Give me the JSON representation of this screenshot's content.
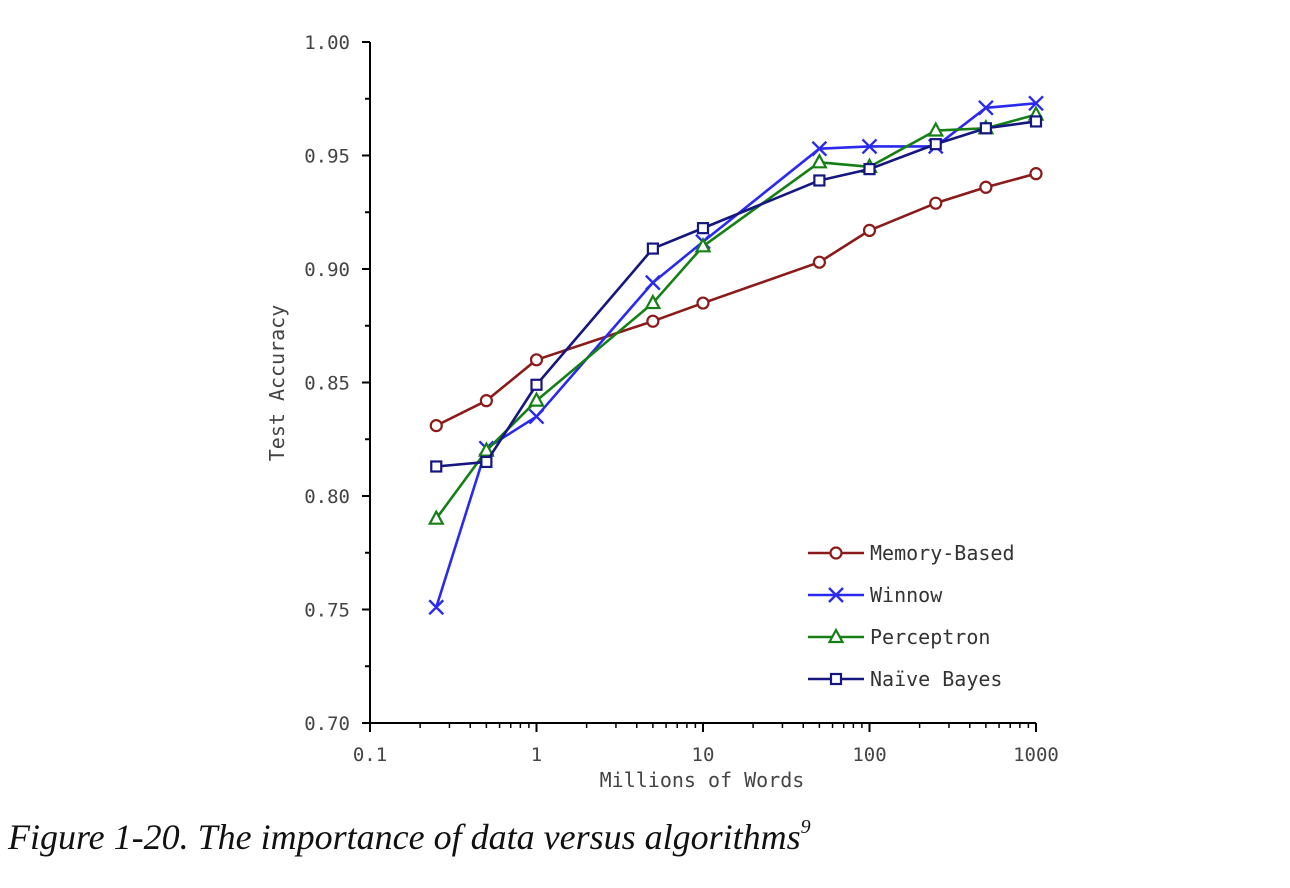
{
  "caption": {
    "text": "Figure 1-20. The importance of data versus algorithms",
    "footnote": "9"
  },
  "chart_data": {
    "type": "line",
    "title": "",
    "xlabel": "Millions of Words",
    "ylabel": "Test Accuracy",
    "x_scale": "log",
    "xlim": [
      0.1,
      1000
    ],
    "ylim": [
      0.7,
      1.0
    ],
    "x_ticks": [
      0.1,
      1,
      10,
      100,
      1000
    ],
    "x_tick_labels": [
      "0.1",
      "1",
      "10",
      "100",
      "1000"
    ],
    "y_ticks": [
      0.7,
      0.75,
      0.8,
      0.85,
      0.9,
      0.95,
      1.0
    ],
    "y_tick_labels": [
      "0.70",
      "0.75",
      "0.80",
      "0.85",
      "0.90",
      "0.95",
      "1.00"
    ],
    "grid": false,
    "legend_position": "bottom-right",
    "x": [
      0.25,
      0.5,
      1,
      5,
      10,
      50,
      100,
      250,
      500,
      1000
    ],
    "series": [
      {
        "name": "Memory-Based",
        "color": "#8b1a1a",
        "marker": "circle",
        "values": [
          0.831,
          0.842,
          0.86,
          0.877,
          0.885,
          0.903,
          0.917,
          0.929,
          0.936,
          0.942
        ]
      },
      {
        "name": "Winnow",
        "color": "#2a2aee",
        "marker": "x",
        "values": [
          0.751,
          0.821,
          0.835,
          0.894,
          0.912,
          0.953,
          0.954,
          0.954,
          0.971,
          0.973
        ]
      },
      {
        "name": "Perceptron",
        "color": "#158015",
        "marker": "triangle",
        "values": [
          0.79,
          0.82,
          0.842,
          0.885,
          0.91,
          0.947,
          0.945,
          0.961,
          0.962,
          0.968
        ]
      },
      {
        "name": "Naïve Bayes",
        "color": "#161680",
        "marker": "square",
        "values": [
          0.813,
          0.815,
          0.849,
          0.909,
          0.918,
          0.939,
          0.944,
          0.955,
          0.962,
          0.965
        ]
      }
    ]
  }
}
